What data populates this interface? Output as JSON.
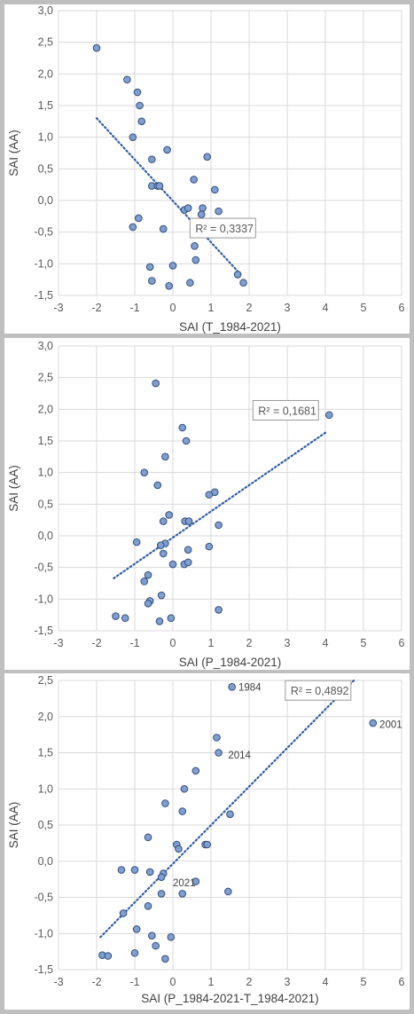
{
  "chart_data": [
    {
      "type": "scatter",
      "xlabel": "SAI (T_1984-2021)",
      "ylabel": "SAI (AA)",
      "xlim": [
        -3,
        6
      ],
      "ylim": [
        -1.5,
        3.0
      ],
      "xticks": [
        "-3",
        "-2",
        "-1",
        "0",
        "1",
        "2",
        "3",
        "4",
        "5",
        "6"
      ],
      "yticks": [
        "-1,5",
        "-1,0",
        "-0,5",
        "0,0",
        "0,5",
        "1,0",
        "1,5",
        "2,0",
        "2,5",
        "3,0"
      ],
      "trendline": {
        "style": "dotted",
        "x": [
          -2.0,
          1.75
        ],
        "y": [
          1.3,
          -1.15
        ]
      },
      "r2_label": "R² = 0,3337",
      "r2_anchor": [
        0.45,
        -0.45
      ],
      "points": [
        [
          -2.0,
          2.41
        ],
        [
          -1.2,
          1.91
        ],
        [
          -0.93,
          1.71
        ],
        [
          -0.87,
          1.5
        ],
        [
          -0.82,
          1.25
        ],
        [
          -1.05,
          1.0
        ],
        [
          -0.15,
          0.8
        ],
        [
          0.9,
          0.69
        ],
        [
          -0.55,
          0.65
        ],
        [
          0.55,
          0.33
        ],
        [
          -0.55,
          0.23
        ],
        [
          -0.4,
          0.23
        ],
        [
          -0.35,
          0.23
        ],
        [
          1.1,
          0.17
        ],
        [
          0.3,
          -0.15
        ],
        [
          0.4,
          -0.12
        ],
        [
          0.78,
          -0.12
        ],
        [
          1.2,
          -0.17
        ],
        [
          0.75,
          -0.22
        ],
        [
          -0.9,
          -0.28
        ],
        [
          -1.05,
          -0.42
        ],
        [
          -0.25,
          -0.45
        ],
        [
          0.63,
          -0.45
        ],
        [
          0.57,
          -0.72
        ],
        [
          0.6,
          -0.94
        ],
        [
          -0.6,
          -1.05
        ],
        [
          0.0,
          -1.03
        ],
        [
          1.7,
          -1.17
        ],
        [
          1.85,
          -1.3
        ],
        [
          -0.55,
          -1.27
        ],
        [
          0.45,
          -1.3
        ],
        [
          -0.1,
          -1.35
        ]
      ],
      "annotations": []
    },
    {
      "type": "scatter",
      "xlabel": "SAI (P_1984-2021)",
      "ylabel": "SAI (AA)",
      "xlim": [
        -3,
        6
      ],
      "ylim": [
        -1.5,
        3.0
      ],
      "xticks": [
        "-3",
        "-2",
        "-1",
        "0",
        "1",
        "2",
        "3",
        "4",
        "5",
        "6"
      ],
      "yticks": [
        "-1,5",
        "-1,0",
        "-0,5",
        "0,0",
        "0,5",
        "1,0",
        "1,5",
        "2,0",
        "2,5",
        "3,0"
      ],
      "trendline": {
        "style": "dotted",
        "x": [
          -1.55,
          4.05
        ],
        "y": [
          -0.67,
          1.65
        ]
      },
      "r2_label": "R² = 0,1681",
      "r2_anchor": [
        2.1,
        1.97
      ],
      "points": [
        [
          -0.45,
          2.41
        ],
        [
          4.1,
          1.91
        ],
        [
          0.25,
          1.71
        ],
        [
          0.35,
          1.5
        ],
        [
          -0.2,
          1.25
        ],
        [
          -0.75,
          1.0
        ],
        [
          -0.4,
          0.8
        ],
        [
          1.1,
          0.69
        ],
        [
          0.95,
          0.65
        ],
        [
          -0.1,
          0.33
        ],
        [
          -0.25,
          0.23
        ],
        [
          0.32,
          0.23
        ],
        [
          0.42,
          0.23
        ],
        [
          1.2,
          0.17
        ],
        [
          -0.2,
          -0.12
        ],
        [
          -0.32,
          -0.15
        ],
        [
          -0.95,
          -0.1
        ],
        [
          0.95,
          -0.17
        ],
        [
          0.4,
          -0.22
        ],
        [
          -0.25,
          -0.28
        ],
        [
          0.3,
          -0.45
        ],
        [
          0.0,
          -0.45
        ],
        [
          0.4,
          -0.42
        ],
        [
          -0.65,
          -0.62
        ],
        [
          -0.75,
          -0.72
        ],
        [
          -0.3,
          -0.94
        ],
        [
          -0.6,
          -1.03
        ],
        [
          -0.65,
          -1.07
        ],
        [
          1.2,
          -1.17
        ],
        [
          -1.5,
          -1.27
        ],
        [
          -1.25,
          -1.3
        ],
        [
          -0.05,
          -1.3
        ],
        [
          -0.35,
          -1.35
        ]
      ],
      "annotations": []
    },
    {
      "type": "scatter",
      "xlabel": "SAI (P_1984-2021-T_1984-2021)",
      "ylabel": "SAI (AA)",
      "xlim": [
        -3,
        6
      ],
      "ylim": [
        -1.5,
        2.5
      ],
      "xticks": [
        "-3",
        "-2",
        "-1",
        "0",
        "1",
        "2",
        "3",
        "4",
        "5",
        "6"
      ],
      "yticks": [
        "-1,5",
        "-1,0",
        "-0,5",
        "0,0",
        "0,5",
        "1,0",
        "1,5",
        "2,0",
        "2,5"
      ],
      "trendline": {
        "style": "dotted",
        "x": [
          -1.9,
          4.75
        ],
        "y": [
          -1.05,
          2.5
        ]
      },
      "r2_label": "R² = 0,4892",
      "r2_anchor": [
        2.95,
        2.35
      ],
      "points": [
        [
          1.55,
          2.41
        ],
        [
          5.25,
          1.91
        ],
        [
          1.15,
          1.71
        ],
        [
          1.2,
          1.5
        ],
        [
          0.6,
          1.25
        ],
        [
          0.3,
          1.0
        ],
        [
          -0.2,
          0.8
        ],
        [
          0.25,
          0.69
        ],
        [
          1.5,
          0.65
        ],
        [
          -0.65,
          0.33
        ],
        [
          0.1,
          0.23
        ],
        [
          0.85,
          0.23
        ],
        [
          0.9,
          0.23
        ],
        [
          0.15,
          0.17
        ],
        [
          -1.35,
          -0.12
        ],
        [
          -1.0,
          -0.12
        ],
        [
          -0.6,
          -0.15
        ],
        [
          -0.25,
          -0.17
        ],
        [
          -0.3,
          -0.22
        ],
        [
          0.6,
          -0.28
        ],
        [
          1.45,
          -0.42
        ],
        [
          -0.3,
          -0.45
        ],
        [
          0.25,
          -0.45
        ],
        [
          -0.65,
          -0.62
        ],
        [
          -1.3,
          -0.72
        ],
        [
          -0.95,
          -0.94
        ],
        [
          -0.55,
          -1.03
        ],
        [
          -0.05,
          -1.05
        ],
        [
          -0.45,
          -1.17
        ],
        [
          -1.0,
          -1.27
        ],
        [
          -1.85,
          -1.3
        ],
        [
          -1.7,
          -1.31
        ],
        [
          -0.2,
          -1.35
        ]
      ],
      "annotations": [
        {
          "text": "1984",
          "x": 1.72,
          "y": 2.41
        },
        {
          "text": "2001",
          "x": 5.42,
          "y": 1.89
        },
        {
          "text": "2014",
          "x": 1.45,
          "y": 1.47
        },
        {
          "text": "2021",
          "x": 0.0,
          "y": -0.3
        }
      ]
    }
  ]
}
